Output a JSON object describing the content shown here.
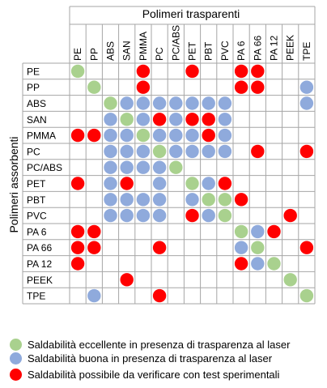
{
  "title_top": "Polimeri trasparenti",
  "title_side": "Polimeri assorbenti",
  "columns": [
    "PE",
    "PP",
    "ABS",
    "SAN",
    "PMMA",
    "PC",
    "PC/ABS",
    "PET",
    "PBT",
    "PVC",
    "PA 6",
    "PA 66",
    "PA 12",
    "PEEK",
    "TPE"
  ],
  "rows": [
    "PE",
    "PP",
    "ABS",
    "SAN",
    "PMMA",
    "PC",
    "PC/ABS",
    "PET",
    "PBT",
    "PVC",
    "PA 6",
    "PA 66",
    "PA 12",
    "PEEK",
    "TPE"
  ],
  "colors": {
    "g": "#a9d18e",
    "b": "#8faadc",
    "r": "#ff0000"
  },
  "cells": [
    "g...r..r..rr...",
    ".g..r.....rr..b",
    "..gbbbbbbb....b",
    "..bgbrbrrb.....",
    "rrbbgbbbrb.....",
    "..bbbgbbbb.r..r",
    "..bbbbg........",
    "r.br.b.gbr.....",
    "..bbbb.bggr....",
    "..bbbb.rbg...r.",
    "rr........gbr..",
    "rr...r....bg..r",
    "r.........rbg..",
    "...r.........g.",
    ".b...r........g"
  ],
  "legend": [
    {
      "color_key": "g",
      "label": "Saldabilità eccellente in presenza di trasparenza al laser"
    },
    {
      "color_key": "b",
      "label": "Saldabilità buona in presenza di trasparenza al laser"
    },
    {
      "color_key": "r",
      "label": "Saldabilità possibile da verificare con test sperimentali"
    }
  ]
}
